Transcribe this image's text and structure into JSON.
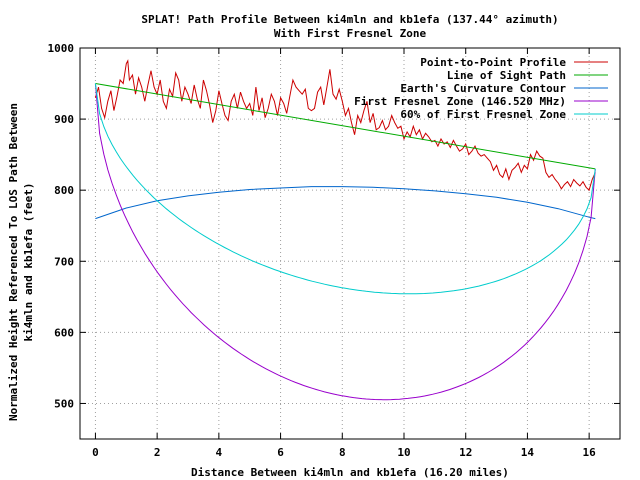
{
  "chart_data": {
    "type": "line",
    "title": "SPLAT! Path Profile Between ki4mln and kb1efa (137.44° azimuth)",
    "subtitle": "With First Fresnel Zone",
    "xlabel": "Distance Between ki4mln and kb1efa (16.20 miles)",
    "ylabel_line1": "Normalized Height Referenced To LOS Path Between",
    "ylabel_line2": "ki4mln and kb1efa (feet)",
    "xlim": [
      -0.5,
      17
    ],
    "ylim": [
      450,
      1000
    ],
    "x_ticks": [
      0,
      2,
      4,
      6,
      8,
      10,
      12,
      14,
      16
    ],
    "y_ticks": [
      500,
      600,
      700,
      800,
      900,
      1000
    ],
    "grid": true,
    "legend_position": "top-right",
    "series": [
      {
        "name": "Point-to-Point Profile",
        "color": "#cc0000",
        "points": [
          [
            0,
            930
          ],
          [
            0.1,
            945
          ],
          [
            0.2,
            915
          ],
          [
            0.3,
            902
          ],
          [
            0.4,
            925
          ],
          [
            0.5,
            940
          ],
          [
            0.6,
            912
          ],
          [
            0.7,
            932
          ],
          [
            0.8,
            955
          ],
          [
            0.9,
            950
          ],
          [
            1.0,
            978
          ],
          [
            1.05,
            982
          ],
          [
            1.1,
            955
          ],
          [
            1.2,
            962
          ],
          [
            1.3,
            935
          ],
          [
            1.4,
            958
          ],
          [
            1.5,
            945
          ],
          [
            1.6,
            925
          ],
          [
            1.7,
            948
          ],
          [
            1.8,
            968
          ],
          [
            1.9,
            945
          ],
          [
            2.0,
            935
          ],
          [
            2.1,
            955
          ],
          [
            2.2,
            925
          ],
          [
            2.3,
            915
          ],
          [
            2.4,
            942
          ],
          [
            2.5,
            932
          ],
          [
            2.6,
            965
          ],
          [
            2.7,
            955
          ],
          [
            2.8,
            925
          ],
          [
            2.9,
            945
          ],
          [
            3.0,
            935
          ],
          [
            3.1,
            922
          ],
          [
            3.2,
            948
          ],
          [
            3.3,
            928
          ],
          [
            3.4,
            915
          ],
          [
            3.5,
            955
          ],
          [
            3.6,
            940
          ],
          [
            3.7,
            920
          ],
          [
            3.8,
            895
          ],
          [
            3.9,
            912
          ],
          [
            4.0,
            940
          ],
          [
            4.1,
            922
          ],
          [
            4.2,
            905
          ],
          [
            4.3,
            898
          ],
          [
            4.4,
            925
          ],
          [
            4.5,
            935
          ],
          [
            4.6,
            915
          ],
          [
            4.7,
            938
          ],
          [
            4.8,
            925
          ],
          [
            4.9,
            915
          ],
          [
            5.0,
            922
          ],
          [
            5.1,
            905
          ],
          [
            5.2,
            945
          ],
          [
            5.3,
            912
          ],
          [
            5.4,
            930
          ],
          [
            5.5,
            902
          ],
          [
            5.6,
            915
          ],
          [
            5.7,
            935
          ],
          [
            5.8,
            925
          ],
          [
            5.9,
            905
          ],
          [
            6.0,
            930
          ],
          [
            6.1,
            922
          ],
          [
            6.2,
            908
          ],
          [
            6.3,
            932
          ],
          [
            6.4,
            955
          ],
          [
            6.5,
            945
          ],
          [
            6.6,
            940
          ],
          [
            6.7,
            935
          ],
          [
            6.8,
            942
          ],
          [
            6.9,
            915
          ],
          [
            7.0,
            912
          ],
          [
            7.1,
            915
          ],
          [
            7.2,
            938
          ],
          [
            7.3,
            945
          ],
          [
            7.4,
            920
          ],
          [
            7.5,
            945
          ],
          [
            7.6,
            970
          ],
          [
            7.7,
            935
          ],
          [
            7.8,
            928
          ],
          [
            7.9,
            942
          ],
          [
            8.0,
            925
          ],
          [
            8.1,
            905
          ],
          [
            8.2,
            915
          ],
          [
            8.3,
            895
          ],
          [
            8.4,
            878
          ],
          [
            8.5,
            905
          ],
          [
            8.6,
            895
          ],
          [
            8.7,
            912
          ],
          [
            8.8,
            925
          ],
          [
            8.9,
            895
          ],
          [
            9.0,
            908
          ],
          [
            9.1,
            885
          ],
          [
            9.2,
            888
          ],
          [
            9.3,
            898
          ],
          [
            9.4,
            885
          ],
          [
            9.5,
            890
          ],
          [
            9.6,
            905
          ],
          [
            9.7,
            895
          ],
          [
            9.8,
            887
          ],
          [
            9.9,
            890
          ],
          [
            10.0,
            872
          ],
          [
            10.1,
            882
          ],
          [
            10.2,
            875
          ],
          [
            10.3,
            890
          ],
          [
            10.4,
            878
          ],
          [
            10.5,
            885
          ],
          [
            10.6,
            872
          ],
          [
            10.7,
            880
          ],
          [
            10.8,
            875
          ],
          [
            10.9,
            868
          ],
          [
            11.0,
            870
          ],
          [
            11.1,
            862
          ],
          [
            11.2,
            872
          ],
          [
            11.3,
            865
          ],
          [
            11.4,
            868
          ],
          [
            11.5,
            860
          ],
          [
            11.6,
            870
          ],
          [
            11.7,
            862
          ],
          [
            11.8,
            855
          ],
          [
            11.9,
            858
          ],
          [
            12.0,
            865
          ],
          [
            12.1,
            850
          ],
          [
            12.2,
            855
          ],
          [
            12.3,
            862
          ],
          [
            12.4,
            852
          ],
          [
            12.5,
            848
          ],
          [
            12.6,
            850
          ],
          [
            12.7,
            845
          ],
          [
            12.8,
            840
          ],
          [
            12.9,
            828
          ],
          [
            13.0,
            835
          ],
          [
            13.1,
            822
          ],
          [
            13.2,
            818
          ],
          [
            13.3,
            830
          ],
          [
            13.4,
            815
          ],
          [
            13.5,
            828
          ],
          [
            13.6,
            832
          ],
          [
            13.7,
            838
          ],
          [
            13.8,
            825
          ],
          [
            13.9,
            835
          ],
          [
            14.0,
            830
          ],
          [
            14.1,
            850
          ],
          [
            14.2,
            842
          ],
          [
            14.3,
            855
          ],
          [
            14.4,
            848
          ],
          [
            14.5,
            845
          ],
          [
            14.6,
            825
          ],
          [
            14.7,
            818
          ],
          [
            14.8,
            822
          ],
          [
            14.9,
            815
          ],
          [
            15.0,
            810
          ],
          [
            15.1,
            802
          ],
          [
            15.2,
            808
          ],
          [
            15.3,
            812
          ],
          [
            15.4,
            805
          ],
          [
            15.5,
            815
          ],
          [
            15.6,
            810
          ],
          [
            15.7,
            806
          ],
          [
            15.8,
            812
          ],
          [
            15.9,
            804
          ],
          [
            16.0,
            800
          ],
          [
            16.1,
            815
          ],
          [
            16.2,
            825
          ]
        ]
      },
      {
        "name": "Line of Sight Path",
        "color": "#00aa00",
        "points": [
          [
            0,
            950
          ],
          [
            16.2,
            830
          ]
        ]
      },
      {
        "name": "Earth's Curvature Contour",
        "color": "#0066cc",
        "points": [
          [
            0,
            760
          ],
          [
            1,
            775
          ],
          [
            2,
            785
          ],
          [
            3,
            792
          ],
          [
            4,
            797
          ],
          [
            5,
            801
          ],
          [
            6,
            803
          ],
          [
            7,
            805
          ],
          [
            8,
            805
          ],
          [
            9,
            804
          ],
          [
            10,
            802
          ],
          [
            11,
            799
          ],
          [
            12,
            795
          ],
          [
            13,
            790
          ],
          [
            14,
            783
          ],
          [
            15,
            774
          ],
          [
            16,
            762
          ],
          [
            16.2,
            760
          ]
        ]
      },
      {
        "name": "First Fresnel Zone (146.520 MHz)",
        "color": "#9900cc",
        "fresnel": {
          "x_start": 0,
          "x_end": 16.2,
          "y_start": 950,
          "y_end": 830,
          "depth": 380
        }
      },
      {
        "name": "60% of First Fresnel Zone",
        "color": "#00cccc",
        "fresnel": {
          "x_start": 0,
          "x_end": 16.2,
          "y_start": 950,
          "y_end": 830,
          "depth": 228
        }
      }
    ]
  }
}
